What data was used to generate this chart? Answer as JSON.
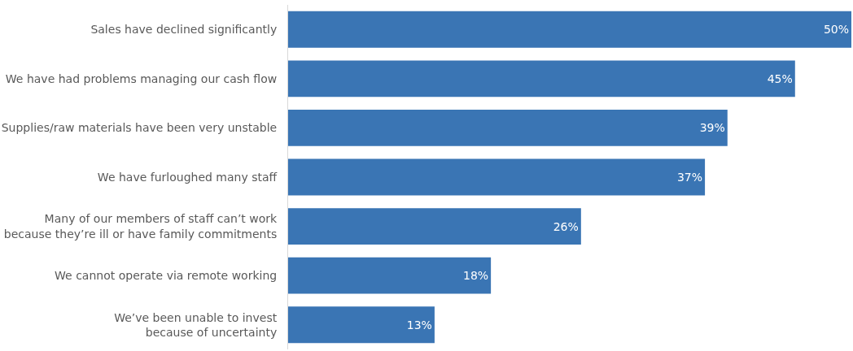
{
  "chart_data": {
    "type": "bar",
    "orientation": "horizontal",
    "categories": [
      "Sales have declined significantly",
      "We have had problems managing our cash flow",
      "Supplies/raw materials have been very unstable",
      "We have furloughed many staff",
      "Many of our members of staff can’t work\nbecause they’re ill or have family commitments",
      "We cannot operate via remote working",
      "We’ve been unable to invest\nbecause of uncertainty"
    ],
    "values": [
      50,
      45,
      39,
      37,
      26,
      18,
      13
    ],
    "value_labels": [
      "50%",
      "45%",
      "39%",
      "37%",
      "26%",
      "18%",
      "13%"
    ],
    "color": "#3a75b4",
    "xlim": [
      0,
      50
    ],
    "tick_labels": "y",
    "grid": false,
    "legend": false
  }
}
